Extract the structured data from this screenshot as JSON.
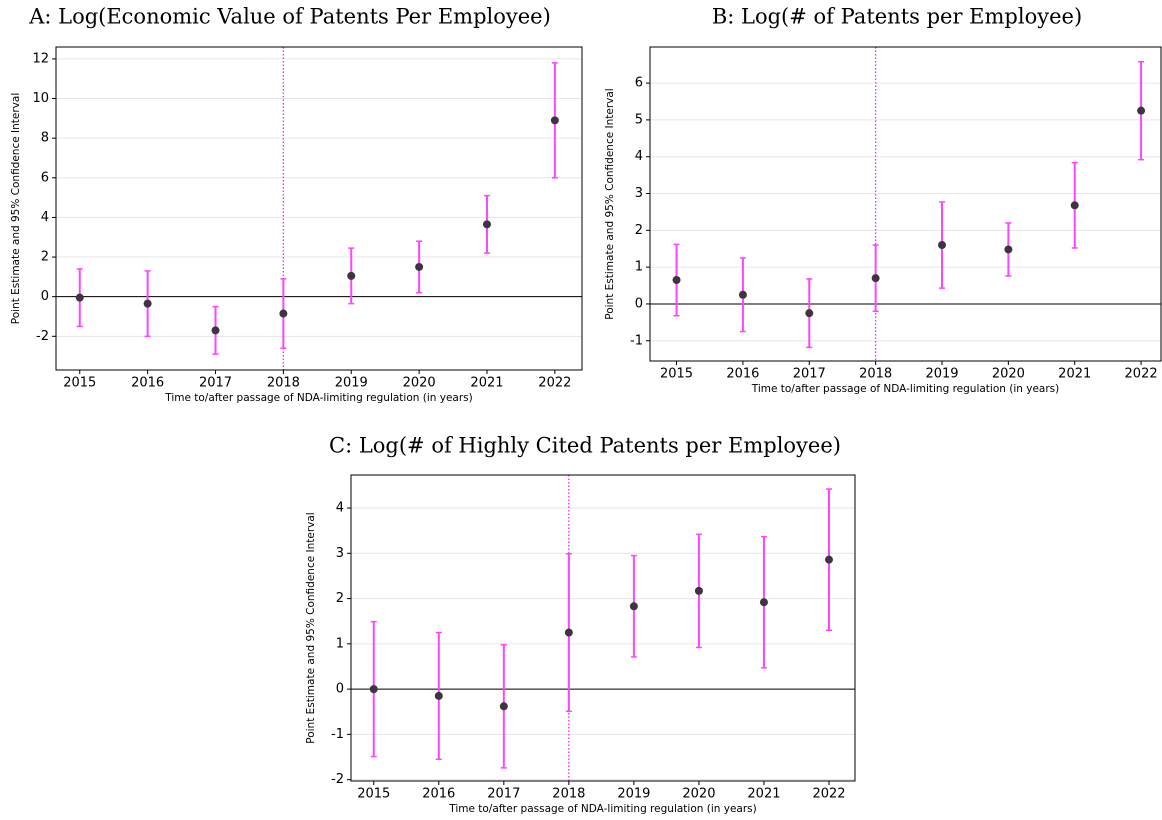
{
  "chart_data": [
    {
      "type": "errorbar",
      "title": "A: Log(Economic Value of Patents Per Employee)",
      "xlabel": "Time to/after passage of NDA-limiting regulation (in years)",
      "ylabel": "Point Estimate and 95% Confidence Interval",
      "x": [
        2015,
        2016,
        2017,
        2018,
        2019,
        2020,
        2021,
        2022
      ],
      "values": [
        -0.05,
        -0.35,
        -1.7,
        -0.85,
        1.05,
        1.5,
        3.65,
        8.9
      ],
      "errors": [
        1.45,
        1.65,
        1.2,
        1.75,
        1.4,
        1.3,
        1.45,
        2.9
      ],
      "xlim": [
        2014.65,
        2022.4
      ],
      "xticks": [
        2015,
        2016,
        2017,
        2018,
        2019,
        2020,
        2021,
        2022
      ],
      "ylim": [
        -3.7,
        12.6
      ],
      "yticks": [
        -2,
        0,
        2,
        4,
        6,
        8,
        10,
        12
      ],
      "vline": 2018,
      "hline": 0,
      "grid": true,
      "color": "#3d3540",
      "error_color": "#ff44ff"
    },
    {
      "type": "errorbar",
      "title": "B: Log(# of Patents per Employee)",
      "xlabel": "Time to/after passage of NDA-limiting regulation (in years)",
      "ylabel": "Point Estimate and 95% Confidence Interval",
      "x": [
        2015,
        2016,
        2017,
        2018,
        2019,
        2020,
        2021,
        2022
      ],
      "values": [
        0.65,
        0.25,
        -0.25,
        0.7,
        1.6,
        1.48,
        2.68,
        5.25
      ],
      "errors": [
        0.97,
        1.0,
        0.93,
        0.9,
        1.17,
        0.72,
        1.16,
        1.33
      ],
      "xlim": [
        2014.6,
        2022.3
      ],
      "xticks": [
        2015,
        2016,
        2017,
        2018,
        2019,
        2020,
        2021,
        2022
      ],
      "ylim": [
        -1.55,
        6.98
      ],
      "yticks": [
        -1,
        0,
        1,
        2,
        3,
        4,
        5,
        6
      ],
      "vline": 2018,
      "hline": 0,
      "grid": true,
      "color": "#3d3540",
      "error_color": "#ff44ff"
    },
    {
      "type": "errorbar",
      "title": "C: Log(# of Highly Cited Patents per Employee)",
      "xlabel": "Time to/after passage of NDA-limiting regulation (in years)",
      "ylabel": "Point Estimate and 95% Confidence Interval",
      "x": [
        2015,
        2016,
        2017,
        2018,
        2019,
        2020,
        2021,
        2022
      ],
      "values": [
        0,
        -0.15,
        -0.38,
        1.25,
        1.83,
        2.17,
        1.92,
        2.86
      ],
      "errors": [
        1.49,
        1.4,
        1.36,
        1.74,
        1.12,
        1.25,
        1.45,
        1.56
      ],
      "xlim": [
        2014.65,
        2022.4
      ],
      "xticks": [
        2015,
        2016,
        2017,
        2018,
        2019,
        2020,
        2021,
        2022
      ],
      "ylim": [
        -2.03,
        4.73
      ],
      "yticks": [
        -2,
        -1,
        0,
        1,
        2,
        3,
        4
      ],
      "vline": 2018,
      "hline": 0,
      "grid": true,
      "color": "#3d3540",
      "error_color": "#ff44ff"
    }
  ]
}
